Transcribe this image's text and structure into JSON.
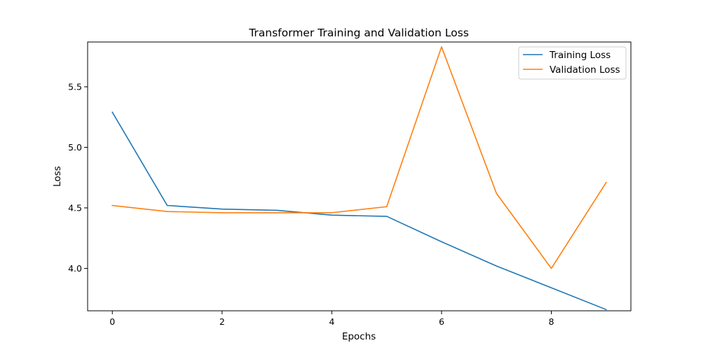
{
  "chart_data": {
    "type": "line",
    "title": "Transformer Training and Validation Loss",
    "xlabel": "Epochs",
    "ylabel": "Loss",
    "x": [
      0,
      1,
      2,
      3,
      4,
      5,
      6,
      7,
      8,
      9
    ],
    "xlim": [
      -0.45,
      9.45
    ],
    "ylim": [
      3.65,
      5.87
    ],
    "xticks": [
      0,
      2,
      4,
      6,
      8
    ],
    "yticks": [
      4.0,
      4.5,
      5.0,
      5.5
    ],
    "xtick_labels": [
      "0",
      "2",
      "4",
      "6",
      "8"
    ],
    "ytick_labels": [
      "4.0",
      "4.5",
      "5.0",
      "5.5"
    ],
    "grid": false,
    "legend_position": "top-right",
    "series": [
      {
        "name": "Training Loss",
        "color": "#1f77b4",
        "values": [
          5.29,
          4.52,
          4.49,
          4.48,
          4.44,
          4.43,
          4.22,
          4.02,
          3.84,
          3.66
        ]
      },
      {
        "name": "Validation Loss",
        "color": "#ff7f0e",
        "values": [
          4.52,
          4.47,
          4.46,
          4.46,
          4.46,
          4.51,
          5.83,
          4.62,
          4.0,
          4.71
        ]
      }
    ]
  }
}
